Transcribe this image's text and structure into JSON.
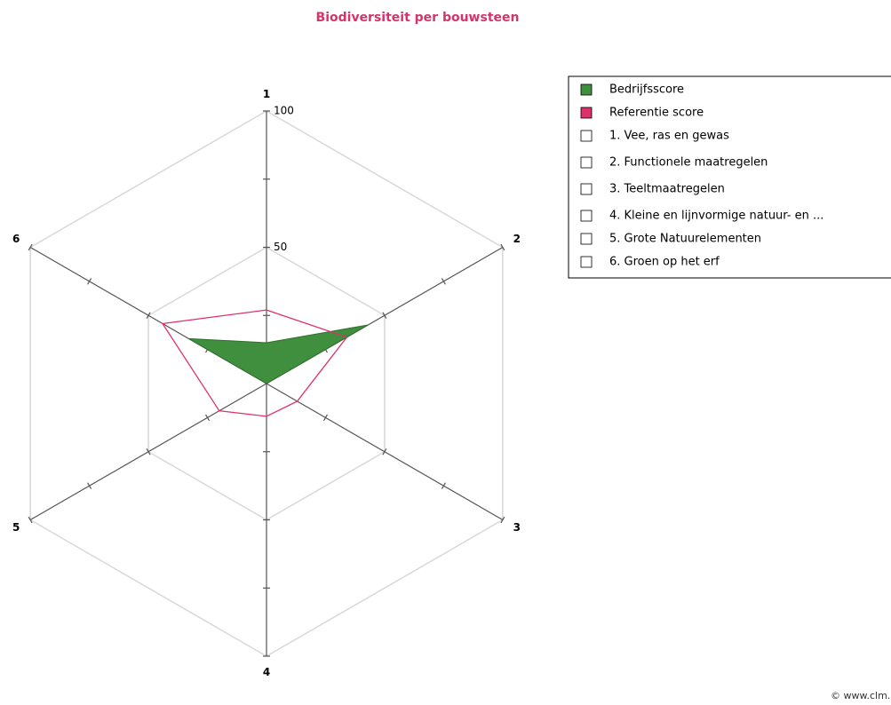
{
  "chart_data": {
    "type": "radar",
    "title": "Biodiversiteit per bouwsteen",
    "categories": [
      "1",
      "2",
      "3",
      "4",
      "5",
      "6"
    ],
    "series": [
      {
        "name": "Bedrijfsscore",
        "color": "#3f8f3f",
        "values": [
          15,
          43,
          0,
          0,
          0,
          33
        ]
      },
      {
        "name": "Referentie score",
        "color": "#e0306a",
        "values": [
          27,
          34,
          13,
          12,
          20,
          44
        ]
      }
    ],
    "rlim": [
      0,
      100
    ],
    "rticks": [
      {
        "value": 25,
        "label": null
      },
      50,
      {
        "value": 75,
        "label": null
      },
      100
    ],
    "legend_items": [
      "1. Vee, ras en gewas",
      "2. Functionele maatregelen",
      "3. Teeltmaatregelen",
      "4. Kleine en lijnvormige natuur- en  ...",
      "5. Grote Natuurelementen",
      "6. Groen op het erf"
    ],
    "credit": "© www.clm.nl"
  }
}
